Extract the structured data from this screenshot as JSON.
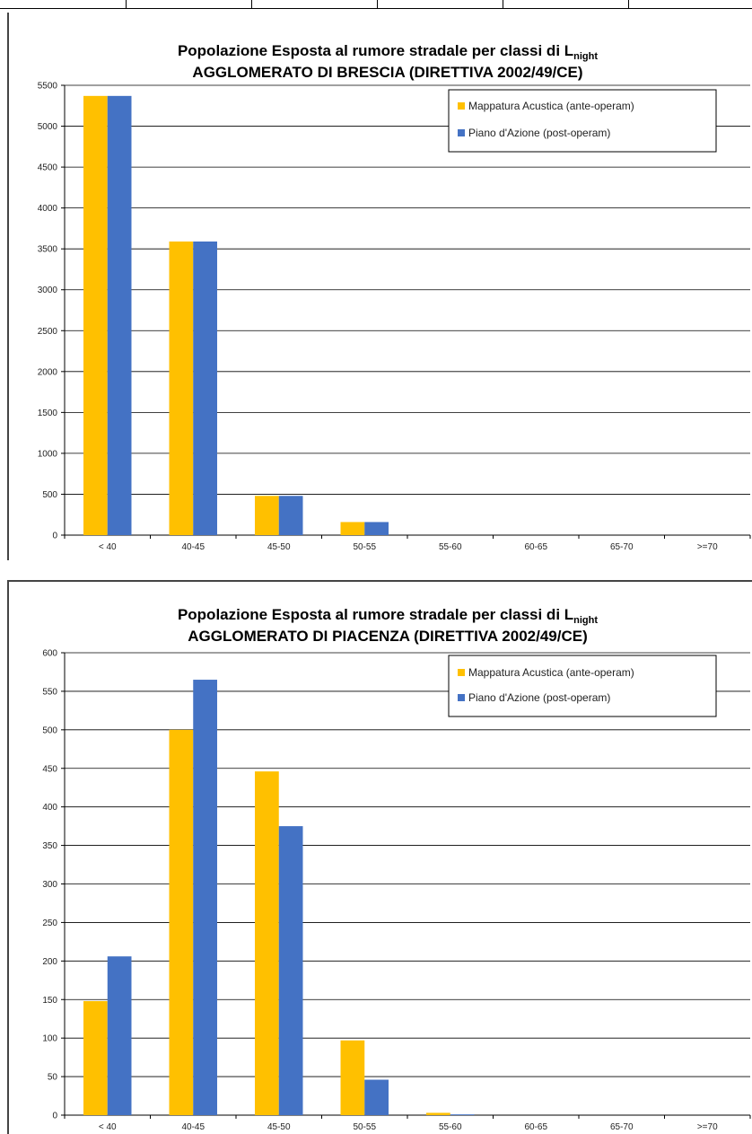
{
  "colors": {
    "ante": "#FFC000",
    "post": "#4472C4",
    "grid": "#000000"
  },
  "chart_data": [
    {
      "type": "bar",
      "title_line1": "Popolazione Esposta al rumore stradale per classi di L",
      "title_subscript": "night",
      "title_line2": "AGGLOMERATO DI BRESCIA (DIRETTIVA  2002/49/CE)",
      "categories": [
        "< 40",
        "40-45",
        "45-50",
        "50-55",
        "55-60",
        "60-65",
        "65-70",
        ">=70"
      ],
      "series": [
        {
          "name": "Mappatura Acustica (ante-operam)",
          "values": [
            5370,
            3590,
            480,
            160,
            0,
            0,
            0,
            0
          ]
        },
        {
          "name": "Piano d'Azione (post-operam)",
          "values": [
            5370,
            3590,
            480,
            160,
            0,
            0,
            0,
            0
          ]
        }
      ],
      "ylim": [
        0,
        5500
      ],
      "yticks": [
        "0",
        "500",
        "1000",
        "1500",
        "2000",
        "2500",
        "3000",
        "3500",
        "4000",
        "4500",
        "5000",
        "5500"
      ],
      "grid": true,
      "legend": "top-right"
    },
    {
      "type": "bar",
      "title_line1": "Popolazione Esposta al rumore stradale per classi di L",
      "title_subscript": "night",
      "title_line2": "AGGLOMERATO DI PIACENZA (DIRETTIVA 2002/49/CE)",
      "categories": [
        "< 40",
        "40-45",
        "45-50",
        "50-55",
        "55-60",
        "60-65",
        "65-70",
        ">=70"
      ],
      "series": [
        {
          "name": "Mappatura Acustica (ante-operam)",
          "values": [
            148,
            500,
            446,
            97,
            3,
            0,
            0,
            0
          ]
        },
        {
          "name": "Piano d'Azione (post-operam)",
          "values": [
            206,
            565,
            375,
            46,
            1,
            0,
            0,
            0
          ]
        }
      ],
      "ylim": [
        0,
        600
      ],
      "yticks": [
        "0",
        "50",
        "100",
        "150",
        "200",
        "250",
        "300",
        "350",
        "400",
        "450",
        "500",
        "550",
        "600"
      ],
      "grid": true,
      "legend": "top-right"
    }
  ]
}
